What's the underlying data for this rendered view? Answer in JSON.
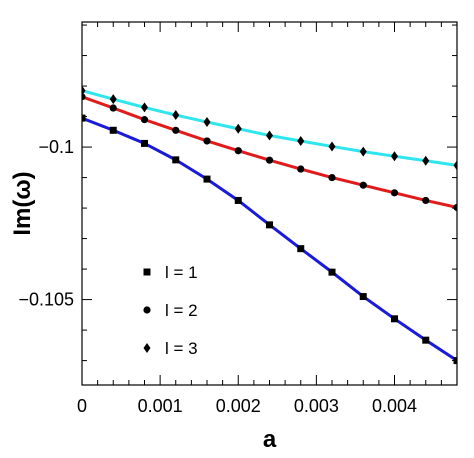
{
  "chart_data": {
    "type": "line",
    "title": "",
    "xlabel": "a",
    "ylabel": "Im(ω)",
    "xlim": [
      0,
      0.0048
    ],
    "ylim": [
      -0.1078,
      -0.0959
    ],
    "x_ticks": [
      0,
      0.001,
      0.002,
      0.003,
      0.004
    ],
    "x_tick_labels": [
      "0",
      "0.001",
      "0.002",
      "0.003",
      "0.004"
    ],
    "y_ticks": [
      -0.1,
      -0.105
    ],
    "y_tick_labels": [
      "−0.1",
      "−0.105"
    ],
    "grid": false,
    "legend_position": "lower-left",
    "series": [
      {
        "name": "l = 1",
        "marker": "square",
        "line_color": "#1a1adb",
        "x": [
          0,
          0.0004,
          0.0008,
          0.0012,
          0.0016,
          0.002,
          0.0024,
          0.0028,
          0.0032,
          0.0036,
          0.004,
          0.0044,
          0.0048
        ],
        "y": [
          -0.09905,
          -0.09945,
          -0.09988,
          -0.10042,
          -0.10105,
          -0.10175,
          -0.10255,
          -0.10333,
          -0.1041,
          -0.1049,
          -0.10563,
          -0.10633,
          -0.107
        ]
      },
      {
        "name": "l = 2",
        "marker": "circle",
        "line_color": "#e11a1a",
        "x": [
          0,
          0.0004,
          0.0008,
          0.0012,
          0.0016,
          0.002,
          0.0024,
          0.0028,
          0.0032,
          0.0036,
          0.004,
          0.0044,
          0.0048
        ],
        "y": [
          -0.09835,
          -0.09872,
          -0.0991,
          -0.09945,
          -0.0998,
          -0.10012,
          -0.10043,
          -0.10072,
          -0.101,
          -0.10125,
          -0.1015,
          -0.10175,
          -0.10198
        ]
      },
      {
        "name": "l = 3",
        "marker": "diamond",
        "line_color": "#2fe6ee",
        "x": [
          0,
          0.0004,
          0.0008,
          0.0012,
          0.0016,
          0.002,
          0.0024,
          0.0028,
          0.0032,
          0.0036,
          0.004,
          0.0044,
          0.0048
        ],
        "y": [
          -0.09815,
          -0.09843,
          -0.0987,
          -0.09895,
          -0.09918,
          -0.0994,
          -0.09962,
          -0.0998,
          -0.09998,
          -0.10015,
          -0.1003,
          -0.10045,
          -0.1006
        ]
      }
    ]
  }
}
